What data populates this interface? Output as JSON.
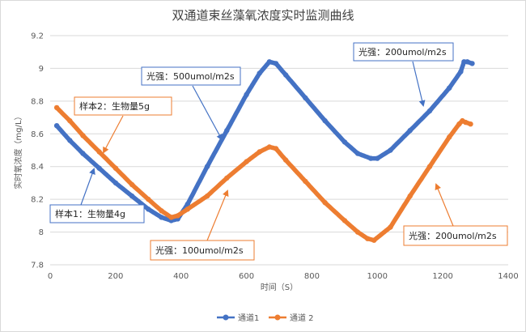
{
  "chart_data": {
    "type": "line",
    "title": "双通道束丝藻氧浓度实时监测曲线",
    "xlabel": "时间（S）",
    "ylabel": "实时氧浓度（mg/L）",
    "xlim": [
      0,
      1400
    ],
    "ylim": [
      7.8,
      9.2
    ],
    "xticks": [
      "0",
      "200",
      "400",
      "600",
      "800",
      "1000",
      "1200",
      "1400"
    ],
    "yticks": [
      "7.8",
      "8",
      "8.2",
      "8.4",
      "8.6",
      "8.8",
      "9",
      "9.2"
    ],
    "grid": true,
    "legend_position": "bottom",
    "series": [
      {
        "name": "通道1",
        "color": "#4472C4",
        "x": [
          20,
          60,
          100,
          150,
          200,
          250,
          300,
          340,
          370,
          390,
          420,
          480,
          540,
          600,
          640,
          670,
          690,
          720,
          780,
          840,
          900,
          940,
          980,
          1000,
          1040,
          1100,
          1160,
          1220,
          1255,
          1265,
          1275,
          1290
        ],
        "y": [
          8.65,
          8.56,
          8.48,
          8.39,
          8.3,
          8.22,
          8.14,
          8.09,
          8.07,
          8.08,
          8.17,
          8.4,
          8.62,
          8.84,
          8.97,
          9.04,
          9.03,
          8.96,
          8.82,
          8.68,
          8.55,
          8.48,
          8.45,
          8.45,
          8.5,
          8.62,
          8.74,
          8.88,
          8.98,
          9.04,
          9.04,
          9.03
        ]
      },
      {
        "name": "通道 2",
        "color": "#ED7D31",
        "x": [
          20,
          60,
          100,
          150,
          200,
          250,
          300,
          340,
          370,
          390,
          420,
          480,
          540,
          600,
          640,
          670,
          690,
          720,
          780,
          840,
          900,
          940,
          970,
          990,
          1040,
          1100,
          1160,
          1220,
          1250,
          1260,
          1270,
          1285
        ],
        "y": [
          8.76,
          8.68,
          8.59,
          8.49,
          8.39,
          8.29,
          8.2,
          8.13,
          8.09,
          8.1,
          8.14,
          8.22,
          8.33,
          8.43,
          8.49,
          8.52,
          8.51,
          8.44,
          8.31,
          8.18,
          8.07,
          8.0,
          7.96,
          7.95,
          8.03,
          8.22,
          8.4,
          8.58,
          8.66,
          8.68,
          8.67,
          8.66
        ]
      }
    ],
    "annotations": [
      {
        "id": "ann1",
        "text": "光强：500umol/m2s"
      },
      {
        "id": "ann2",
        "text": "样本2：生物量5g"
      },
      {
        "id": "ann3",
        "text": "光强：200umol/m2s"
      },
      {
        "id": "ann4",
        "text": "样本1：生物量4g"
      },
      {
        "id": "ann5",
        "text": "光强：100umol/m2s"
      },
      {
        "id": "ann6",
        "text": "光强：200umol/m2s"
      }
    ]
  }
}
